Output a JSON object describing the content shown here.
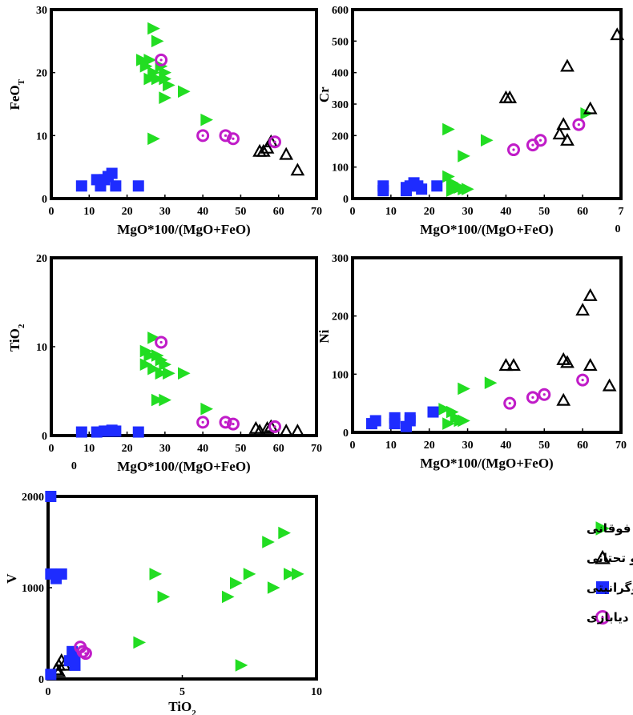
{
  "colors": {
    "upper_gabbro": "#22dd22",
    "lower_gabbro": "#000000",
    "plagiogranite_dyke": "#1e2cff",
    "diabase_dyke": "#c01cc8"
  },
  "legend": [
    {
      "label": "گابرو فوقانی",
      "series": "upper_gabbro",
      "marker": "triangle-right"
    },
    {
      "label": "گابرو تحتانی",
      "series": "lower_gabbro",
      "marker": "triangle-up-open"
    },
    {
      "label": "دایک پلاژیوگرانیتی",
      "series": "plagiogranite_dyke",
      "marker": "square"
    },
    {
      "label": "دایک دیابازی",
      "series": "diabase_dyke",
      "marker": "circle-open"
    }
  ],
  "chart_data": [
    {
      "id": "feo",
      "type": "scatter",
      "xlabel": "MgO*100/(MgO+FeO)",
      "ylabel": "FeO",
      "ylabel_sub": "T",
      "xlim": [
        0,
        70
      ],
      "ylim": [
        0,
        30
      ],
      "xticks": [
        "0",
        "10",
        "20",
        "30",
        "40",
        "50",
        "60",
        "70"
      ],
      "yticks": [
        "0",
        "10",
        "20",
        "30"
      ],
      "series": [
        {
          "key": "upper_gabbro",
          "points": [
            [
              27,
              27
            ],
            [
              28,
              25
            ],
            [
              24,
              22
            ],
            [
              26,
              22
            ],
            [
              25,
              21
            ],
            [
              27,
              20
            ],
            [
              29,
              21
            ],
            [
              30,
              20
            ],
            [
              26,
              19
            ],
            [
              28,
              19
            ],
            [
              30,
              19
            ],
            [
              31,
              18
            ],
            [
              35,
              17
            ],
            [
              30,
              16
            ],
            [
              27,
              9.5
            ],
            [
              41,
              12.5
            ]
          ]
        },
        {
          "key": "lower_gabbro",
          "points": [
            [
              55,
              7.5
            ],
            [
              56,
              7.5
            ],
            [
              57,
              8
            ],
            [
              58,
              9
            ],
            [
              62,
              7
            ],
            [
              65,
              4.5
            ]
          ]
        },
        {
          "key": "plagiogranite_dyke",
          "points": [
            [
              8,
              2
            ],
            [
              12,
              3
            ],
            [
              14,
              3
            ],
            [
              15,
              3.5
            ],
            [
              16,
              4
            ],
            [
              17,
              2
            ],
            [
              13,
              2
            ],
            [
              23,
              2
            ]
          ]
        },
        {
          "key": "diabase_dyke",
          "points": [
            [
              29,
              22
            ],
            [
              40,
              10
            ],
            [
              46,
              10
            ],
            [
              48,
              9.5
            ],
            [
              59,
              9
            ]
          ]
        }
      ]
    },
    {
      "id": "cr",
      "type": "scatter",
      "xlabel": "MgO*100/(MgO+FeO)",
      "ylabel": "Cr",
      "xlim": [
        0,
        70
      ],
      "ylim": [
        0,
        600
      ],
      "xticks": [
        "0",
        "10",
        "20",
        "30",
        "40",
        "50",
        "60",
        "7"
      ],
      "xtick_extra": "0",
      "yticks": [
        "0",
        "100",
        "200",
        "300",
        "400",
        "500",
        "600"
      ],
      "series": [
        {
          "key": "upper_gabbro",
          "points": [
            [
              25,
              220
            ],
            [
              35,
              185
            ],
            [
              29,
              135
            ],
            [
              61,
              270
            ],
            [
              25,
              70
            ],
            [
              26,
              50
            ],
            [
              27,
              40
            ],
            [
              28,
              35
            ],
            [
              29,
              30
            ],
            [
              30,
              30
            ],
            [
              26,
              25
            ]
          ]
        },
        {
          "key": "lower_gabbro",
          "points": [
            [
              69,
              520
            ],
            [
              56,
              420
            ],
            [
              40,
              320
            ],
            [
              41,
              320
            ],
            [
              62,
              285
            ],
            [
              55,
              235
            ],
            [
              54,
              205
            ],
            [
              56,
              185
            ]
          ]
        },
        {
          "key": "plagiogranite_dyke",
          "points": [
            [
              8,
              40
            ],
            [
              8,
              25
            ],
            [
              14,
              35
            ],
            [
              15,
              40
            ],
            [
              16,
              50
            ],
            [
              17,
              40
            ],
            [
              18,
              30
            ],
            [
              14,
              25
            ],
            [
              22,
              40
            ]
          ]
        },
        {
          "key": "diabase_dyke",
          "points": [
            [
              42,
              155
            ],
            [
              47,
              170
            ],
            [
              49,
              185
            ],
            [
              59,
              235
            ]
          ]
        }
      ]
    },
    {
      "id": "tio2",
      "type": "scatter",
      "xlabel": "MgO*100/(MgO+FeO)",
      "ylabel": "TiO",
      "ylabel_sub": "2",
      "xlim": [
        0,
        70
      ],
      "ylim": [
        0,
        20
      ],
      "xticks": [
        "0",
        "10",
        "20",
        "30",
        "40",
        "50",
        "60",
        "70"
      ],
      "xtick_extra": "0",
      "yticks": [
        "0",
        "10",
        "20"
      ],
      "series": [
        {
          "key": "upper_gabbro",
          "points": [
            [
              27,
              11
            ],
            [
              25,
              9.5
            ],
            [
              26,
              9
            ],
            [
              28,
              9
            ],
            [
              29,
              8.5
            ],
            [
              30,
              8
            ],
            [
              25,
              8
            ],
            [
              27,
              7.5
            ],
            [
              29,
              7
            ],
            [
              31,
              7
            ],
            [
              35,
              7
            ],
            [
              28,
              4
            ],
            [
              30,
              4
            ],
            [
              41,
              3
            ]
          ]
        },
        {
          "key": "lower_gabbro",
          "points": [
            [
              54,
              0.8
            ],
            [
              55,
              0.5
            ],
            [
              57,
              0.8
            ],
            [
              58,
              1
            ],
            [
              62,
              0.5
            ],
            [
              65,
              0.5
            ]
          ]
        },
        {
          "key": "plagiogranite_dyke",
          "points": [
            [
              8,
              0.4
            ],
            [
              12,
              0.4
            ],
            [
              14,
              0.5
            ],
            [
              15,
              0.5
            ],
            [
              16,
              0.6
            ],
            [
              17,
              0.5
            ],
            [
              23,
              0.4
            ]
          ]
        },
        {
          "key": "diabase_dyke",
          "points": [
            [
              29,
              10.5
            ],
            [
              40,
              1.5
            ],
            [
              46,
              1.5
            ],
            [
              48,
              1.3
            ],
            [
              59,
              1
            ]
          ]
        }
      ]
    },
    {
      "id": "ni",
      "type": "scatter",
      "xlabel": "MgO*100/(MgO+FeO)",
      "ylabel": "Ni",
      "xlim": [
        0,
        70
      ],
      "ylim": [
        0,
        300
      ],
      "xticks": [
        "0",
        "10",
        "20",
        "30",
        "40",
        "50",
        "60",
        "70"
      ],
      "yticks": [
        "0",
        "100",
        "200",
        "300"
      ],
      "series": [
        {
          "key": "upper_gabbro",
          "points": [
            [
              36,
              85
            ],
            [
              29,
              75
            ],
            [
              24,
              40
            ],
            [
              26,
              35
            ],
            [
              27,
              25
            ],
            [
              28,
              20
            ],
            [
              29,
              20
            ],
            [
              25,
              15
            ]
          ]
        },
        {
          "key": "lower_gabbro",
          "points": [
            [
              62,
              235
            ],
            [
              60,
              210
            ],
            [
              40,
              115
            ],
            [
              42,
              115
            ],
            [
              55,
              125
            ],
            [
              56,
              120
            ],
            [
              62,
              115
            ],
            [
              67,
              80
            ],
            [
              55,
              55
            ]
          ]
        },
        {
          "key": "plagiogranite_dyke",
          "points": [
            [
              5,
              15
            ],
            [
              6,
              20
            ],
            [
              11,
              25
            ],
            [
              11,
              15
            ],
            [
              14,
              10
            ],
            [
              15,
              20
            ],
            [
              15,
              25
            ],
            [
              21,
              35
            ]
          ]
        },
        {
          "key": "diabase_dyke",
          "points": [
            [
              41,
              50
            ],
            [
              47,
              60
            ],
            [
              50,
              65
            ],
            [
              60,
              90
            ]
          ]
        }
      ]
    },
    {
      "id": "v",
      "type": "scatter",
      "xlabel": "TiO",
      "xlabel_sub": "2",
      "ylabel": "V",
      "xlim": [
        0,
        10
      ],
      "ylim": [
        0,
        2000
      ],
      "xticks": [
        "0",
        "5",
        "10"
      ],
      "yticks": [
        "0",
        "1000",
        "2000"
      ],
      "series": [
        {
          "key": "upper_gabbro",
          "points": [
            [
              8.8,
              1600
            ],
            [
              8.2,
              1500
            ],
            [
              4.0,
              1150
            ],
            [
              7.5,
              1150
            ],
            [
              9.0,
              1150
            ],
            [
              9.3,
              1150
            ],
            [
              7.0,
              1050
            ],
            [
              8.4,
              1000
            ],
            [
              4.3,
              900
            ],
            [
              6.7,
              900
            ],
            [
              3.4,
              400
            ],
            [
              7.2,
              150
            ]
          ]
        },
        {
          "key": "lower_gabbro",
          "points": [
            [
              0.3,
              100
            ],
            [
              0.4,
              150
            ],
            [
              0.5,
              200
            ],
            [
              0.6,
              150
            ],
            [
              0.4,
              80
            ]
          ]
        },
        {
          "key": "plagiogranite_dyke",
          "points": [
            [
              0.1,
              2000
            ],
            [
              0.1,
              1150
            ],
            [
              0.3,
              1100
            ],
            [
              0.5,
              1150
            ],
            [
              0.9,
              300
            ],
            [
              1.0,
              250
            ],
            [
              0.8,
              200
            ],
            [
              1.0,
              150
            ],
            [
              0.1,
              50
            ]
          ]
        },
        {
          "key": "diabase_dyke",
          "points": [
            [
              1.2,
              350
            ],
            [
              1.3,
              300
            ],
            [
              1.4,
              280
            ]
          ]
        }
      ]
    }
  ]
}
